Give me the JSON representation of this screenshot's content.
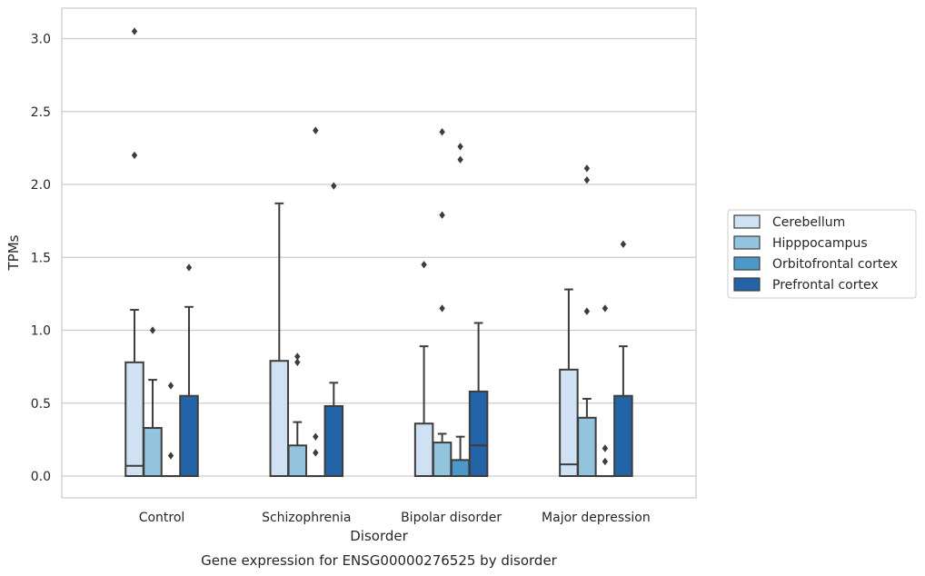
{
  "chart_data": {
    "type": "box",
    "xlabel": "Disorder",
    "ylabel": "TPMs",
    "caption": "Gene expression for ENSG00000276525 by disorder",
    "ylim": [
      -0.15,
      3.2
    ],
    "yticks": [
      0.0,
      0.5,
      1.0,
      1.5,
      2.0,
      2.5,
      3.0
    ],
    "ytick_labels": [
      "0.0",
      "0.5",
      "1.0",
      "1.5",
      "2.0",
      "2.5",
      "3.0"
    ],
    "grid": true,
    "legend_position": "right",
    "categories": [
      "Control",
      "Schizophrenia",
      "Bipolar disorder",
      "Major depression"
    ],
    "series": [
      {
        "name": "Cerebellum",
        "color": "#cfe1f2",
        "boxes": [
          {
            "q1": 0.0,
            "median": 0.07,
            "q3": 0.78,
            "whisker_low": 0.0,
            "whisker_high": 1.14,
            "outliers": [
              2.2,
              3.05
            ]
          },
          {
            "q1": 0.0,
            "median": 0.0,
            "q3": 0.79,
            "whisker_low": 0.0,
            "whisker_high": 1.87,
            "outliers": []
          },
          {
            "q1": 0.0,
            "median": 0.0,
            "q3": 0.36,
            "whisker_low": 0.0,
            "whisker_high": 0.89,
            "outliers": [
              1.45
            ]
          },
          {
            "q1": 0.0,
            "median": 0.08,
            "q3": 0.73,
            "whisker_low": 0.0,
            "whisker_high": 1.28,
            "outliers": []
          }
        ]
      },
      {
        "name": "Hipppocampus",
        "color": "#93c4de",
        "boxes": [
          {
            "q1": 0.0,
            "median": 0.0,
            "q3": 0.33,
            "whisker_low": 0.0,
            "whisker_high": 0.66,
            "outliers": [
              1.0
            ]
          },
          {
            "q1": 0.0,
            "median": 0.0,
            "q3": 0.21,
            "whisker_low": 0.0,
            "whisker_high": 0.37,
            "outliers": [
              0.78,
              0.82
            ]
          },
          {
            "q1": 0.0,
            "median": 0.0,
            "q3": 0.23,
            "whisker_low": 0.0,
            "whisker_high": 0.29,
            "outliers": [
              1.15,
              1.79,
              2.36
            ]
          },
          {
            "q1": 0.0,
            "median": 0.0,
            "q3": 0.4,
            "whisker_low": 0.0,
            "whisker_high": 0.53,
            "outliers": [
              1.13,
              2.03,
              2.11
            ]
          }
        ]
      },
      {
        "name": "Orbitofrontal cortex",
        "color": "#4b98c9",
        "boxes": [
          {
            "q1": 0.0,
            "median": 0.0,
            "q3": 0.0,
            "whisker_low": 0.0,
            "whisker_high": 0.0,
            "outliers": [
              0.14,
              0.62
            ]
          },
          {
            "q1": 0.0,
            "median": 0.0,
            "q3": 0.0,
            "whisker_low": 0.0,
            "whisker_high": 0.0,
            "outliers": [
              0.16,
              0.27,
              2.37
            ]
          },
          {
            "q1": 0.0,
            "median": 0.0,
            "q3": 0.11,
            "whisker_low": 0.0,
            "whisker_high": 0.27,
            "outliers": [
              2.17,
              2.26
            ]
          },
          {
            "q1": 0.0,
            "median": 0.0,
            "q3": 0.0,
            "whisker_low": 0.0,
            "whisker_high": 0.0,
            "outliers": [
              0.1,
              0.19,
              1.15
            ]
          }
        ]
      },
      {
        "name": "Prefrontal cortex",
        "color": "#2364a9",
        "boxes": [
          {
            "q1": 0.0,
            "median": 0.0,
            "q3": 0.55,
            "whisker_low": 0.0,
            "whisker_high": 1.16,
            "outliers": [
              1.43
            ]
          },
          {
            "q1": 0.0,
            "median": 0.0,
            "q3": 0.48,
            "whisker_low": 0.0,
            "whisker_high": 0.64,
            "outliers": [
              1.99
            ]
          },
          {
            "q1": 0.0,
            "median": 0.21,
            "q3": 0.58,
            "whisker_low": 0.0,
            "whisker_high": 1.05,
            "outliers": []
          },
          {
            "q1": 0.0,
            "median": 0.0,
            "q3": 0.55,
            "whisker_low": 0.0,
            "whisker_high": 0.89,
            "outliers": [
              1.59
            ]
          }
        ]
      }
    ]
  }
}
